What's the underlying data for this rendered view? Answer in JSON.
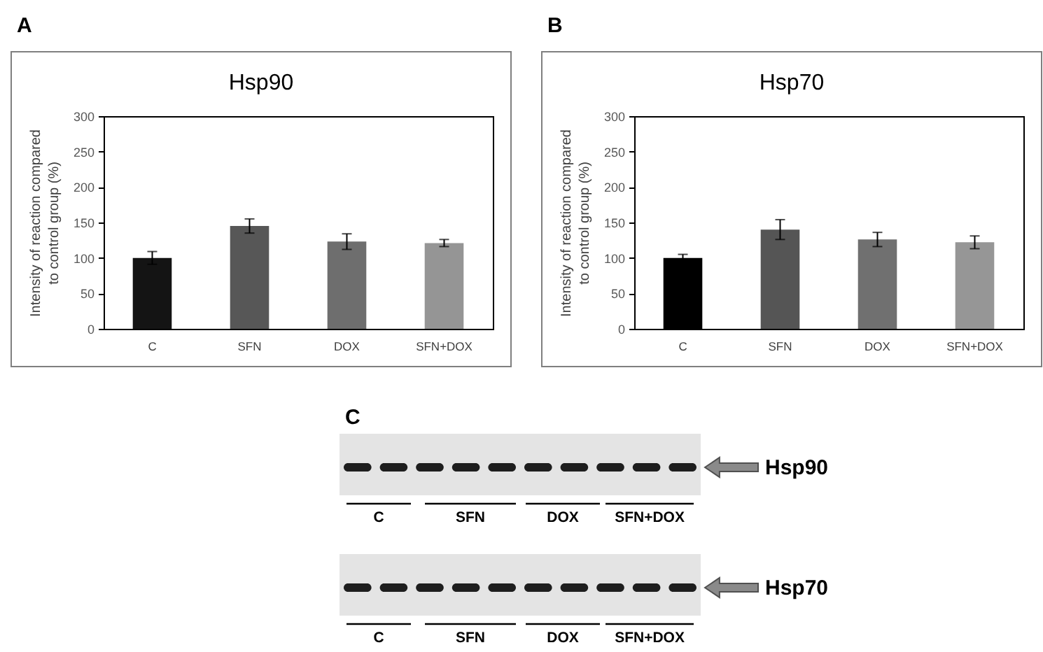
{
  "chart_data": [
    {
      "type": "bar",
      "title": "Hsp90",
      "annotations": [
        "A"
      ],
      "ylabel": "Intensity of reaction compared to control group (%)",
      "categories": [
        "C",
        "SFN",
        "DOX",
        "SFN+DOX"
      ],
      "values": [
        100,
        145,
        123,
        121
      ],
      "errors": [
        9,
        10,
        11,
        5
      ],
      "colors": [
        "#141414",
        "#575757",
        "#6e6e6e",
        "#959595"
      ],
      "ylim": [
        0,
        300
      ],
      "yticks": [
        0,
        50,
        100,
        150,
        200,
        250,
        300
      ],
      "grid": false
    },
    {
      "type": "bar",
      "title": "Hsp70",
      "annotations": [
        "B"
      ],
      "ylabel": "Intensity of reaction compared to control group (%)",
      "categories": [
        "C",
        "SFN",
        "DOX",
        "SFN+DOX"
      ],
      "values": [
        100,
        140,
        126,
        122
      ],
      "errors": [
        5,
        14,
        10,
        9
      ],
      "colors": [
        "#000000",
        "#555555",
        "#707070",
        "#969696"
      ],
      "ylim": [
        0,
        300
      ],
      "yticks": [
        0,
        50,
        100,
        150,
        200,
        250,
        300
      ],
      "grid": false
    },
    {
      "type": "other",
      "annotations": [
        "C",
        "Hsp90",
        "Hsp70"
      ],
      "categories": [
        "C",
        "SFN",
        "DOX",
        "SFN+DOX"
      ]
    }
  ]
}
